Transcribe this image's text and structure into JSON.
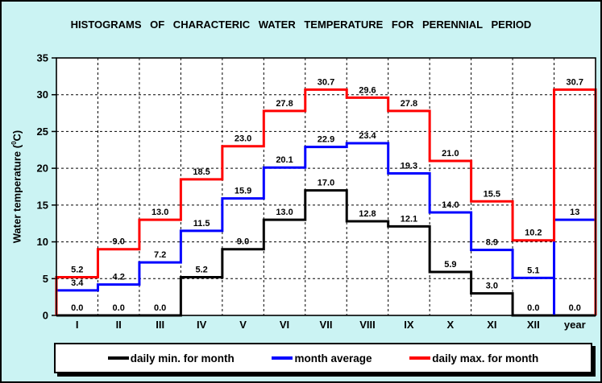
{
  "window": {
    "background": "#CBF3F3",
    "plot_background": "#FFFFFF",
    "border_color": "#000000"
  },
  "title": "HISTOGRAMS OF CHARACTERIC WATER TEMPERATURE FOR PERENNIAL PERIOD",
  "y_axis": {
    "label_prefix": "Water temperature (",
    "label_sup": "0",
    "label_suffix": "C)",
    "ticks": [
      "0",
      "5",
      "10",
      "15",
      "20",
      "25",
      "30",
      "35"
    ]
  },
  "chart_data": {
    "type": "line",
    "variant": "step-histogram",
    "title": "HISTOGRAMS OF CHARACTERIC WATER TEMPERATURE FOR PERENNIAL PERIOD",
    "xlabel": "",
    "ylabel": "Water temperature (0C)",
    "ylim": [
      0,
      35
    ],
    "ytick_step": 5,
    "grid": "dashed-both",
    "legend_position": "bottom",
    "categories": [
      "I",
      "II",
      "III",
      "IV",
      "V",
      "VI",
      "VII",
      "VIII",
      "IX",
      "X",
      "XI",
      "XII",
      "year"
    ],
    "series": [
      {
        "name": "daily min. for month",
        "color": "#000000",
        "values": [
          0.0,
          0.0,
          0.0,
          5.2,
          9.0,
          13.0,
          17.0,
          12.8,
          12.1,
          5.9,
          3.0,
          0.0,
          0.0
        ],
        "labels": [
          "0.0",
          "0.0",
          "0.0",
          "5.2",
          "9.0",
          "13.0",
          "17.0",
          "12.8",
          "12.1",
          "5.9",
          "3.0",
          "0.0",
          "0.0"
        ]
      },
      {
        "name": "month average",
        "color": "#0000FF",
        "values": [
          3.4,
          4.2,
          7.2,
          11.5,
          15.9,
          20.1,
          22.9,
          23.4,
          19.3,
          14.0,
          8.9,
          5.1,
          13
        ],
        "labels": [
          "3.4",
          "4.2",
          "7.2",
          "11.5",
          "15.9",
          "20.1",
          "22.9",
          "23.4",
          "19.3",
          "14.0",
          "8.9",
          "5.1",
          "13"
        ]
      },
      {
        "name": "daily max. for month",
        "color": "#FF0000",
        "values": [
          5.2,
          9.0,
          13.0,
          18.5,
          23.0,
          27.8,
          30.7,
          29.6,
          27.8,
          21.0,
          15.5,
          10.2,
          30.7
        ],
        "labels": [
          "5.2",
          "9.0",
          "13.0",
          "18.5",
          "23.0",
          "27.8",
          "30.7",
          "29.6",
          "27.8",
          "21.0",
          "15.5",
          "10.2",
          "30.7"
        ]
      }
    ]
  },
  "legend": {
    "items": [
      {
        "label": "daily min. for month",
        "color": "#000000"
      },
      {
        "label": "month average",
        "color": "#0000FF"
      },
      {
        "label": "daily max. for month",
        "color": "#FF0000"
      }
    ]
  }
}
